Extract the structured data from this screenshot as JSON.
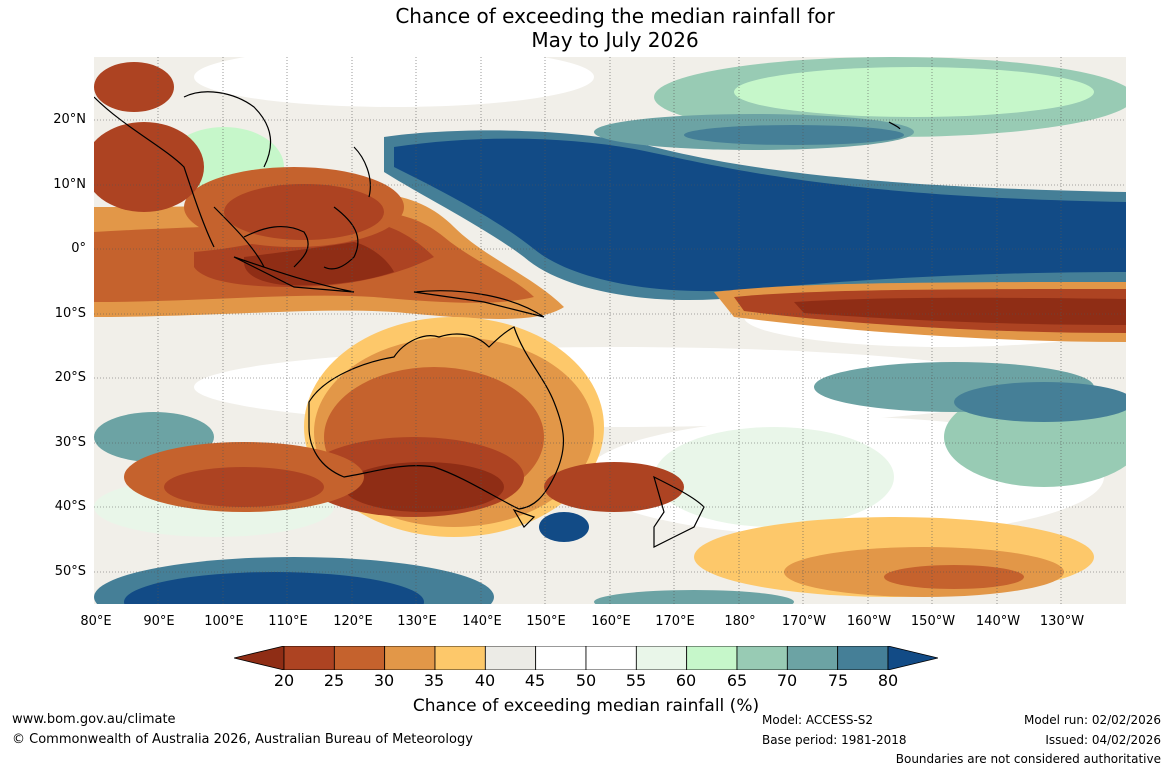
{
  "title": {
    "line1": "Chance of exceeding the median rainfall for",
    "line2": "May to July 2026"
  },
  "axes": {
    "lat_labels": [
      "20°N",
      "10°N",
      "0°",
      "10°S",
      "20°S",
      "30°S",
      "40°S",
      "50°S"
    ],
    "lon_labels": [
      "80°E",
      "90°E",
      "100°E",
      "110°E",
      "120°E",
      "130°E",
      "140°E",
      "150°E",
      "160°E",
      "170°E",
      "180°",
      "170°W",
      "160°W",
      "150°W",
      "140°W",
      "130°W"
    ]
  },
  "colorbar": {
    "ticks": [
      "20",
      "25",
      "30",
      "35",
      "40",
      "45",
      "50",
      "55",
      "60",
      "65",
      "70",
      "75",
      "80"
    ],
    "colors": [
      "#8f2d15",
      "#ad4322",
      "#c5622d",
      "#e29748",
      "#fdc86a",
      "#ecebe6",
      "#ffffff",
      "#ffffff",
      "#e9f6e9",
      "#c6f7ca",
      "#98cbb4",
      "#6ca3a4",
      "#457f97",
      "#124b86"
    ],
    "label": "Chance of exceeding median rainfall (%)"
  },
  "footer": {
    "url": "www.bom.gov.au/climate",
    "copyright": "© Commonwealth of Australia 2026, Australian Bureau of Meteorology",
    "model": "Model: ACCESS-S2",
    "base_period": "Base period: 1981-2018",
    "model_run": "Model run: 02/02/2026",
    "issued": "Issued: 04/02/2026",
    "disclaimer": "Boundaries are not considered authoritative"
  },
  "map": {
    "grid_lines": true,
    "colors": {
      "dark_blue": "#124b86",
      "dark_brown": "#8f2d15",
      "coast": "#000000"
    }
  }
}
